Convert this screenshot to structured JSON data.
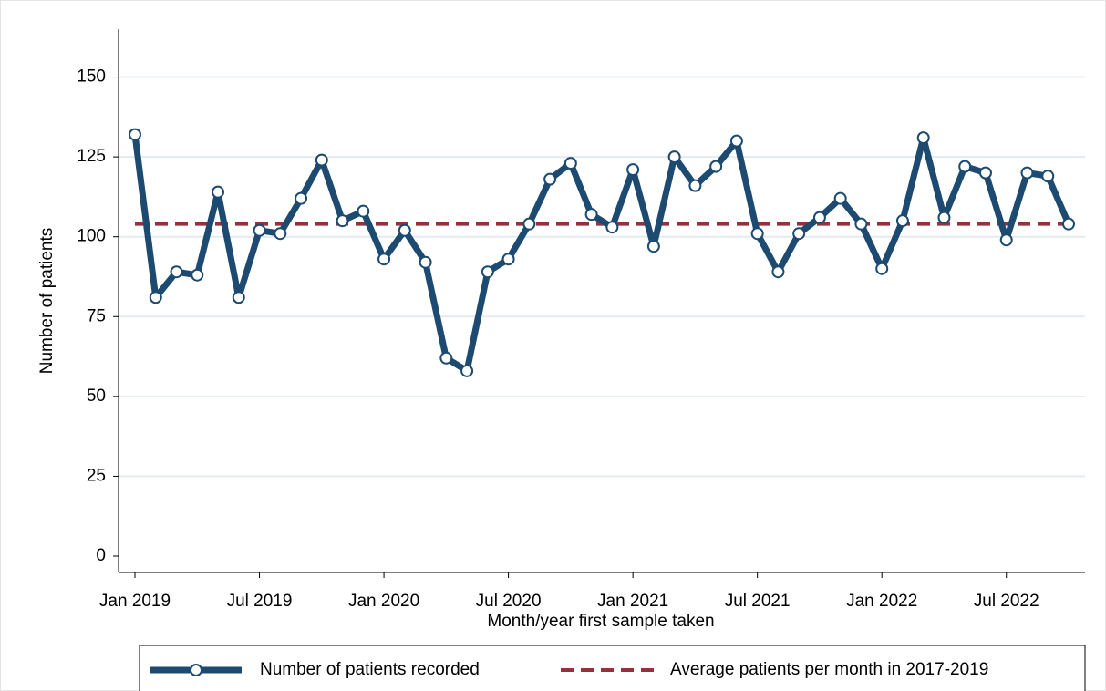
{
  "chart_data": {
    "type": "line",
    "x_label": "Month/year first sample taken",
    "y_label": "Number of patients",
    "x": [
      "2019-01",
      "2019-02",
      "2019-03",
      "2019-04",
      "2019-05",
      "2019-06",
      "2019-07",
      "2019-08",
      "2019-09",
      "2019-10",
      "2019-11",
      "2019-12",
      "2020-01",
      "2020-02",
      "2020-03",
      "2020-04",
      "2020-05",
      "2020-06",
      "2020-07",
      "2020-08",
      "2020-09",
      "2020-10",
      "2020-11",
      "2020-12",
      "2021-01",
      "2021-02",
      "2021-03",
      "2021-04",
      "2021-05",
      "2021-06",
      "2021-07",
      "2021-08",
      "2021-09",
      "2021-10",
      "2021-11",
      "2021-12",
      "2022-01",
      "2022-02",
      "2022-03",
      "2022-04",
      "2022-05",
      "2022-06",
      "2022-07",
      "2022-08",
      "2022-09",
      "2022-10"
    ],
    "series": [
      {
        "name": "Number of patients recorded",
        "color": "#1c4a70",
        "values": [
          132,
          81,
          89,
          88,
          114,
          81,
          102,
          101,
          112,
          124,
          105,
          108,
          93,
          102,
          92,
          62,
          58,
          89,
          93,
          104,
          118,
          123,
          107,
          103,
          121,
          97,
          125,
          116,
          122,
          130,
          101,
          89,
          101,
          106,
          112,
          104,
          90,
          105,
          131,
          106,
          122,
          120,
          99,
          120,
          119,
          104
        ]
      }
    ],
    "reference_line": {
      "name": "Average patients per month in 2017-2019",
      "value": 104,
      "color": "#92333c"
    },
    "ylim": [
      0,
      165
    ],
    "yticks": [
      0,
      25,
      50,
      75,
      100,
      125,
      150
    ],
    "xticks": [
      {
        "value": "2019-01",
        "label": "Jan 2019"
      },
      {
        "value": "2019-07",
        "label": "Jul 2019"
      },
      {
        "value": "2020-01",
        "label": "Jan 2020"
      },
      {
        "value": "2020-07",
        "label": "Jul 2020"
      },
      {
        "value": "2021-01",
        "label": "Jan 2021"
      },
      {
        "value": "2021-07",
        "label": "Jul 2021"
      },
      {
        "value": "2022-01",
        "label": "Jan 2022"
      },
      {
        "value": "2022-07",
        "label": "Jul 2022"
      }
    ],
    "grid": true
  }
}
